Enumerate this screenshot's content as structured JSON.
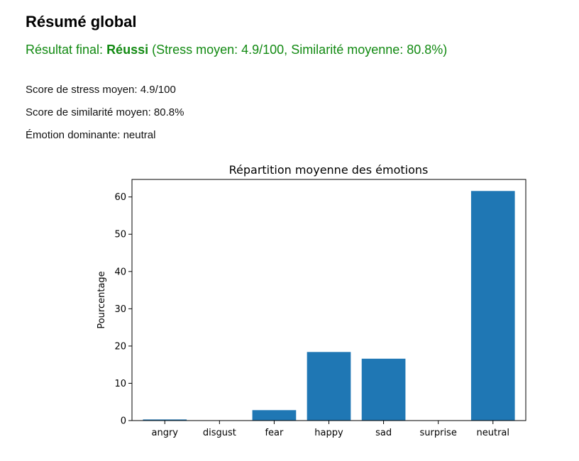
{
  "summary": {
    "heading": "Résumé global",
    "final_prefix": "Résultat final: ",
    "final_status": "Réussi",
    "final_suffix": " (Stress moyen: 4.9/100, Similarité moyenne: 80.8%)",
    "stress_line": "Score de stress moyen: 4.9/100",
    "similarity_line": "Score de similarité moyen: 80.8%",
    "emotion_line": "Émotion dominante: neutral"
  },
  "colors": {
    "success": "#128a12",
    "bar": "#1f77b4"
  },
  "chart_data": {
    "type": "bar",
    "title": "Répartition moyenne des émotions",
    "xlabel": "",
    "ylabel": "Pourcentage",
    "categories": [
      "angry",
      "disgust",
      "fear",
      "happy",
      "sad",
      "surprise",
      "neutral"
    ],
    "values": [
      0.3,
      0.05,
      2.8,
      18.4,
      16.6,
      0.05,
      61.6
    ],
    "ylim": [
      0,
      64.7
    ],
    "yticks": [
      0,
      10,
      20,
      30,
      40,
      50,
      60
    ],
    "grid": false
  }
}
